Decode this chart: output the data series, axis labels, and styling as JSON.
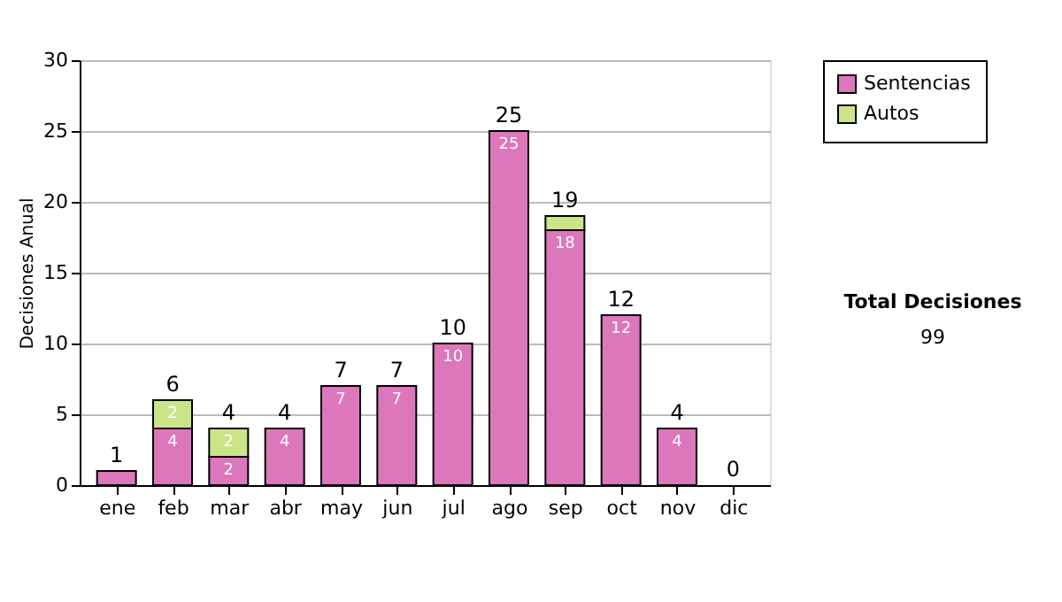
{
  "chart_data": {
    "type": "bar",
    "stacked": true,
    "ylabel": "Decisiones Anual",
    "categories": [
      "ene",
      "feb",
      "mar",
      "abr",
      "may",
      "jun",
      "jul",
      "ago",
      "sep",
      "oct",
      "nov",
      "dic"
    ],
    "series": [
      {
        "name": "Sentencias",
        "color": "#dd77bb",
        "values": [
          1,
          4,
          2,
          4,
          7,
          7,
          10,
          25,
          18,
          12,
          4,
          0
        ],
        "value_labels": [
          null,
          "4",
          "2",
          "4",
          "7",
          "7",
          "10",
          "25",
          "18",
          "12",
          "4",
          null
        ]
      },
      {
        "name": "Autos",
        "color": "#cce488",
        "values": [
          0,
          2,
          2,
          0,
          0,
          0,
          0,
          0,
          1,
          0,
          0,
          0
        ],
        "value_labels": [
          null,
          "2",
          "2",
          null,
          null,
          null,
          null,
          null,
          null,
          null,
          null,
          null
        ]
      }
    ],
    "totals": [
      "1",
      "6",
      "4",
      "4",
      "7",
      "7",
      "10",
      "25",
      "19",
      "12",
      "4",
      "0"
    ],
    "ylim": [
      0,
      30
    ],
    "yticks": [
      0,
      5,
      10,
      15,
      20,
      25,
      30
    ],
    "grid": "y",
    "legend": "right",
    "annotations": [
      "Total Decisiones",
      "99"
    ]
  }
}
